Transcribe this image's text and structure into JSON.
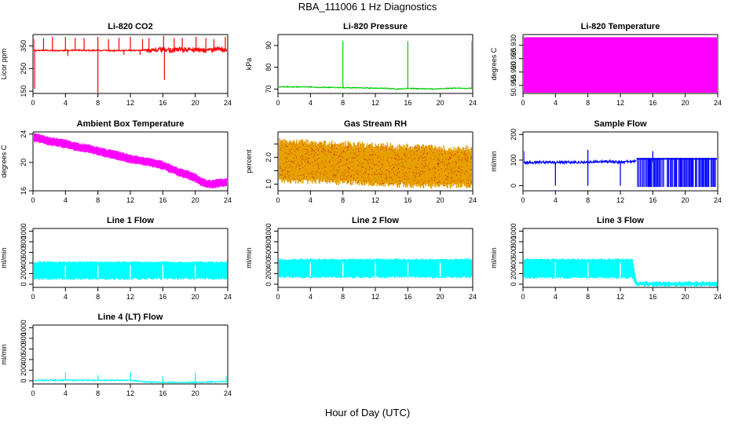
{
  "figure": {
    "title": "RBA_111006  1 Hz Diagnostics",
    "xlabel": "Hour of Day (UTC)"
  },
  "chart_data": [
    {
      "type": "line",
      "title": "Li-820 CO2",
      "ylabel": "Licor ppm",
      "color": "#ff0000",
      "xlim": [
        0,
        24
      ],
      "ylim": [
        140,
        400
      ],
      "xticks": [
        0,
        4,
        8,
        12,
        16,
        20,
        24
      ],
      "yticks": [
        150,
        250,
        350
      ],
      "series": [
        {
          "x": [
            0,
            1,
            2,
            3,
            4,
            5,
            6,
            7,
            8,
            9,
            10,
            11,
            12,
            13,
            14,
            15,
            16,
            17,
            18,
            19,
            20,
            21,
            22,
            23,
            24
          ],
          "values": [
            330,
            330,
            330,
            329,
            330,
            331,
            330,
            330,
            330,
            330,
            329,
            330,
            330,
            330,
            332,
            333,
            333,
            332,
            333,
            334,
            333,
            332,
            333,
            333,
            333
          ]
        }
      ]
    },
    {
      "type": "line",
      "title": "Li-820 Pressure",
      "ylabel": "kPa",
      "color": "#00cc00",
      "xlim": [
        0,
        24
      ],
      "ylim": [
        68,
        95
      ],
      "xticks": [
        0,
        4,
        8,
        12,
        16,
        20,
        24
      ],
      "yticks": [
        70,
        80,
        90
      ],
      "series": [
        {
          "x": [
            0,
            1,
            2,
            3,
            4,
            5,
            6,
            7,
            8,
            9,
            10,
            11,
            12,
            13,
            14,
            15,
            16,
            17,
            18,
            19,
            20,
            21,
            22,
            23,
            24
          ],
          "values": [
            71,
            71,
            71,
            71,
            71,
            70.8,
            70.8,
            70.7,
            70.7,
            70.6,
            70.6,
            70.5,
            70.4,
            70.4,
            70.2,
            70,
            70.3,
            70.2,
            70.1,
            70,
            70.2,
            70.3,
            70.5,
            70.4,
            70.3
          ]
        }
      ]
    },
    {
      "type": "area",
      "title": "Li-820 Temperature",
      "ylabel": "degrees C",
      "color": "#ff00ff",
      "xlim": [
        0,
        24
      ],
      "ylim": [
        50.912,
        50.934
      ],
      "xticks": [
        0,
        4,
        8,
        12,
        16,
        20,
        24
      ],
      "yticks": [
        50.915,
        50.92,
        50.925,
        50.93
      ],
      "yticklabels": [
        "50.915",
        "50.920",
        "50.925",
        "50.930"
      ],
      "series": [
        {
          "x": [
            0,
            24
          ],
          "values": [
            50.933,
            50.933
          ]
        }
      ]
    },
    {
      "type": "line",
      "title": "Ambient Box Temperature",
      "ylabel": "degrees C",
      "color": "#ff00ff",
      "xlim": [
        0,
        24
      ],
      "ylim": [
        16,
        24.3
      ],
      "xticks": [
        0,
        4,
        8,
        12,
        16,
        20,
        24
      ],
      "yticks": [
        16,
        20,
        24
      ],
      "series": [
        {
          "x": [
            0,
            1,
            2,
            3,
            4,
            5,
            6,
            7,
            8,
            9,
            10,
            11,
            12,
            13,
            14,
            15,
            16,
            17,
            18,
            19,
            20,
            21,
            22,
            23,
            24
          ],
          "values": [
            23.6,
            23.3,
            23,
            22.8,
            22.6,
            22.3,
            22.1,
            21.9,
            21.6,
            21.3,
            21.1,
            20.8,
            20.5,
            20.3,
            20.1,
            19.9,
            19.6,
            19.1,
            18.6,
            18.3,
            17.8,
            17.1,
            16.9,
            17.1,
            17.2
          ]
        }
      ]
    },
    {
      "type": "line",
      "title": "Gas Stream RH",
      "ylabel": "percent",
      "color": "#e6a000",
      "xlim": [
        0,
        24
      ],
      "ylim": [
        0.75,
        2.95
      ],
      "xticks": [
        0,
        4,
        8,
        12,
        16,
        20,
        24
      ],
      "yticks": [
        1.0,
        1.5,
        2.0,
        2.5
      ],
      "yticklabels": [
        "1.0",
        "",
        "2.0",
        ""
      ],
      "series": [
        {
          "name": "upper",
          "x": [
            0,
            4,
            8,
            12,
            16,
            20,
            24
          ],
          "values": [
            2.6,
            2.55,
            2.5,
            2.45,
            2.4,
            2.35,
            2.35
          ]
        },
        {
          "name": "lower",
          "x": [
            0,
            4,
            8,
            12,
            16,
            20,
            24
          ],
          "values": [
            1.1,
            1.1,
            1.05,
            1.0,
            0.95,
            0.92,
            0.95
          ]
        }
      ]
    },
    {
      "type": "line",
      "title": "Sample Flow",
      "ylabel": "ml/min",
      "color": "#0000ff",
      "xlim": [
        0,
        24
      ],
      "ylim": [
        -20,
        210
      ],
      "xticks": [
        0,
        4,
        8,
        12,
        16,
        20,
        24
      ],
      "yticks": [
        0,
        100,
        200
      ],
      "series": [
        {
          "x": [
            0,
            2,
            4,
            6,
            8,
            10,
            12,
            14,
            16,
            18,
            20,
            22,
            24
          ],
          "values": [
            90,
            92,
            91,
            92,
            92,
            95,
            92,
            95,
            100,
            105,
            105,
            105,
            105
          ]
        }
      ]
    },
    {
      "type": "line",
      "title": "Line 1 Flow",
      "ylabel": "ml/min",
      "color": "#00ffff",
      "xlim": [
        0,
        24
      ],
      "ylim": [
        -60,
        1050
      ],
      "xticks": [
        0,
        4,
        8,
        12,
        16,
        20,
        24
      ],
      "yticks": [
        0,
        200,
        400,
        600,
        800,
        1000
      ],
      "series": [
        {
          "name": "upper",
          "x": [
            0,
            24
          ],
          "values": [
            420,
            420
          ]
        },
        {
          "name": "lower",
          "x": [
            0,
            24
          ],
          "values": [
            100,
            100
          ]
        }
      ]
    },
    {
      "type": "line",
      "title": "Line 2 Flow",
      "ylabel": "ml/min",
      "color": "#00ffff",
      "xlim": [
        0,
        24
      ],
      "ylim": [
        -60,
        1050
      ],
      "xticks": [
        0,
        4,
        8,
        12,
        16,
        20,
        24
      ],
      "yticks": [
        0,
        200,
        400,
        600,
        800,
        1000
      ],
      "series": [
        {
          "name": "upper",
          "x": [
            0,
            24
          ],
          "values": [
            470,
            470
          ]
        },
        {
          "name": "lower",
          "x": [
            0,
            24
          ],
          "values": [
            130,
            130
          ]
        }
      ]
    },
    {
      "type": "line",
      "title": "Line 3 Flow",
      "ylabel": "ml/min",
      "color": "#00ffff",
      "xlim": [
        0,
        24
      ],
      "ylim": [
        -60,
        1050
      ],
      "xticks": [
        0,
        4,
        8,
        12,
        16,
        20,
        24
      ],
      "yticks": [
        0,
        200,
        400,
        600,
        800,
        1000
      ],
      "series": [
        {
          "name": "upper",
          "x": [
            0,
            13.5,
            14,
            24
          ],
          "values": [
            470,
            470,
            40,
            40
          ]
        },
        {
          "name": "lower",
          "x": [
            0,
            13.5,
            14,
            24
          ],
          "values": [
            120,
            120,
            -30,
            -30
          ]
        }
      ]
    },
    {
      "type": "line",
      "title": "Line 4 (LT) Flow",
      "ylabel": "ml/min",
      "color": "#00ffff",
      "xlim": [
        0,
        24
      ],
      "ylim": [
        -60,
        1050
      ],
      "xticks": [
        0,
        4,
        8,
        12,
        16,
        20,
        24
      ],
      "yticks": [
        0,
        200,
        400,
        600,
        800,
        1000
      ],
      "series": [
        {
          "x": [
            0,
            4,
            8,
            12,
            14,
            16,
            20,
            24
          ],
          "values": [
            10,
            10,
            10,
            10,
            -20,
            -30,
            -30,
            -10
          ]
        }
      ]
    }
  ]
}
